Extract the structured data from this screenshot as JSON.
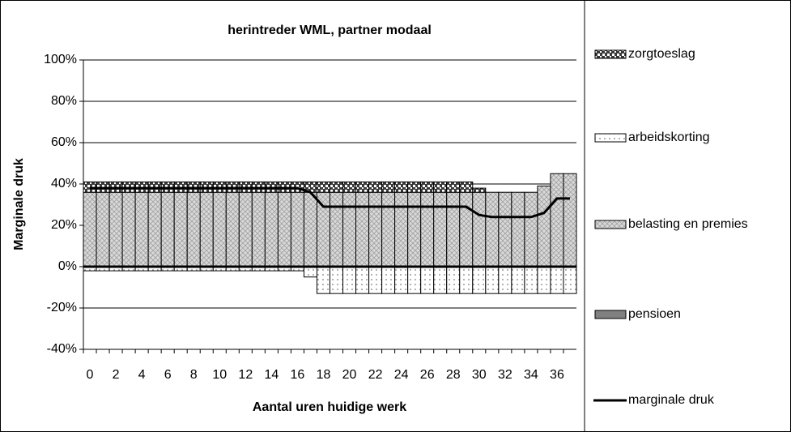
{
  "chart_data": {
    "type": "bar",
    "stacked": true,
    "title": "herintreder WML, partner modaal",
    "xlabel": "Aantal uren huidige werk",
    "ylabel": "Marginale druk",
    "categories": [
      "0",
      null,
      "2",
      null,
      "4",
      null,
      "6",
      null,
      "8",
      null,
      "10",
      null,
      "12",
      null,
      "14",
      null,
      "16",
      null,
      "18",
      null,
      "20",
      null,
      "22",
      null,
      "24",
      null,
      "26",
      null,
      "28",
      null,
      "30",
      null,
      "32",
      null,
      "34",
      null,
      "36",
      null
    ],
    "series": [
      {
        "name": "zorgtoeslag",
        "color": "#3a3a3a",
        "hatch": "checker",
        "values": [
          5,
          5,
          5,
          5,
          5,
          5,
          5,
          5,
          5,
          5,
          5,
          5,
          5,
          5,
          5,
          5,
          5,
          5,
          5,
          5,
          5,
          5,
          5,
          5,
          5,
          5,
          5,
          5,
          5,
          5,
          2,
          0,
          0,
          0,
          0,
          0,
          0,
          0
        ]
      },
      {
        "name": "arbeidskorting",
        "color": "#ffffff",
        "hatch": "dots",
        "values": [
          -2,
          -2,
          -2,
          -2,
          -2,
          -2,
          -2,
          -2,
          -2,
          -2,
          -2,
          -2,
          -2,
          -2,
          -2,
          -2,
          -2,
          -5,
          -13,
          -13,
          -13,
          -13,
          -13,
          -13,
          -13,
          -13,
          -13,
          -13,
          -13,
          -13,
          -13,
          -13,
          -13,
          -13,
          -13,
          -13,
          -13,
          -13
        ]
      },
      {
        "name": "belasting en premies",
        "color": "#d9d9d9",
        "hatch": "cross",
        "values": [
          36,
          36,
          36,
          36,
          36,
          36,
          36,
          36,
          36,
          36,
          36,
          36,
          36,
          36,
          36,
          36,
          36,
          36,
          36,
          36,
          36,
          36,
          36,
          36,
          36,
          36,
          36,
          36,
          36,
          36,
          36,
          36,
          36,
          36,
          36,
          39,
          45,
          45
        ]
      },
      {
        "name": "pensioen",
        "color": "#808080",
        "hatch": "none",
        "values": [
          0,
          0,
          0,
          0,
          0,
          0,
          0,
          0,
          0,
          0,
          0,
          0,
          0,
          0,
          0,
          0,
          0,
          0,
          0,
          0,
          0,
          0,
          0,
          0,
          0,
          0,
          0,
          0,
          0,
          0,
          0,
          0,
          0,
          0,
          0,
          0,
          0,
          0
        ]
      },
      {
        "name": "marginale druk",
        "color": "#000000",
        "type": "line",
        "values": [
          38,
          38,
          38,
          38,
          38,
          38,
          38,
          38,
          38,
          38,
          38,
          38,
          38,
          38,
          38,
          38,
          38,
          36,
          29,
          29,
          29,
          29,
          29,
          29,
          29,
          29,
          29,
          29,
          29,
          29,
          25,
          24,
          24,
          24,
          24,
          26,
          33,
          33
        ]
      }
    ],
    "ylim": [
      -40,
      100
    ],
    "yticks": [
      {
        "value": -40,
        "label": "-40%"
      },
      {
        "value": -20,
        "label": "-20%"
      },
      {
        "value": 0,
        "label": "0%"
      },
      {
        "value": 20,
        "label": "20%"
      },
      {
        "value": 40,
        "label": "40%"
      },
      {
        "value": 60,
        "label": "60%"
      },
      {
        "value": 80,
        "label": "80%"
      },
      {
        "value": 100,
        "label": "100%"
      }
    ],
    "grid": true,
    "legend": "right"
  }
}
